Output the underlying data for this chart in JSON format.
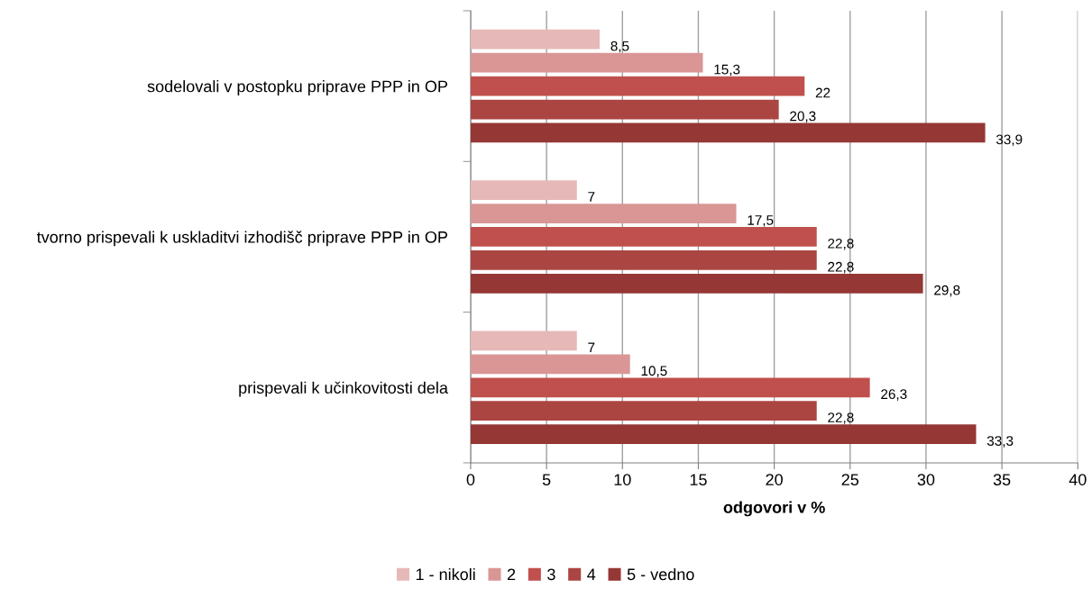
{
  "chart_data": {
    "type": "bar",
    "orientation": "horizontal",
    "xlabel": "odgovori v %",
    "categories": [
      "sodelovali v postopku priprave PPP in OP",
      "tvorno prispevali k uskladitvi izhodišč priprave PPP in OP",
      "prispevali k učinkovitosti dela"
    ],
    "series": [
      {
        "name": "1 - nikoli",
        "color": "#e6b9b8",
        "values": [
          8.5,
          7,
          7
        ],
        "value_labels": [
          "8,5",
          "7",
          "7"
        ]
      },
      {
        "name": "2",
        "color": "#d99694",
        "values": [
          15.3,
          17.5,
          10.5
        ],
        "value_labels": [
          "15,3",
          "17,5",
          "10,5"
        ]
      },
      {
        "name": "3",
        "color": "#c0504d",
        "values": [
          22,
          22.8,
          26.3
        ],
        "value_labels": [
          "22",
          "22,8",
          "26,3"
        ]
      },
      {
        "name": "4",
        "color": "#ab4542",
        "values": [
          20.3,
          22.8,
          22.8
        ],
        "value_labels": [
          "20,3",
          "22,8",
          "22,8"
        ]
      },
      {
        "name": "5 - vedno",
        "color": "#953735",
        "values": [
          33.9,
          29.8,
          33.3
        ],
        "value_labels": [
          "33,9",
          "29,8",
          "33,3"
        ]
      }
    ],
    "xlim": [
      0,
      40
    ],
    "xticks": [
      0,
      5,
      10,
      15,
      20,
      25,
      30,
      35,
      40
    ],
    "grid": "x",
    "legend": "bottom"
  }
}
